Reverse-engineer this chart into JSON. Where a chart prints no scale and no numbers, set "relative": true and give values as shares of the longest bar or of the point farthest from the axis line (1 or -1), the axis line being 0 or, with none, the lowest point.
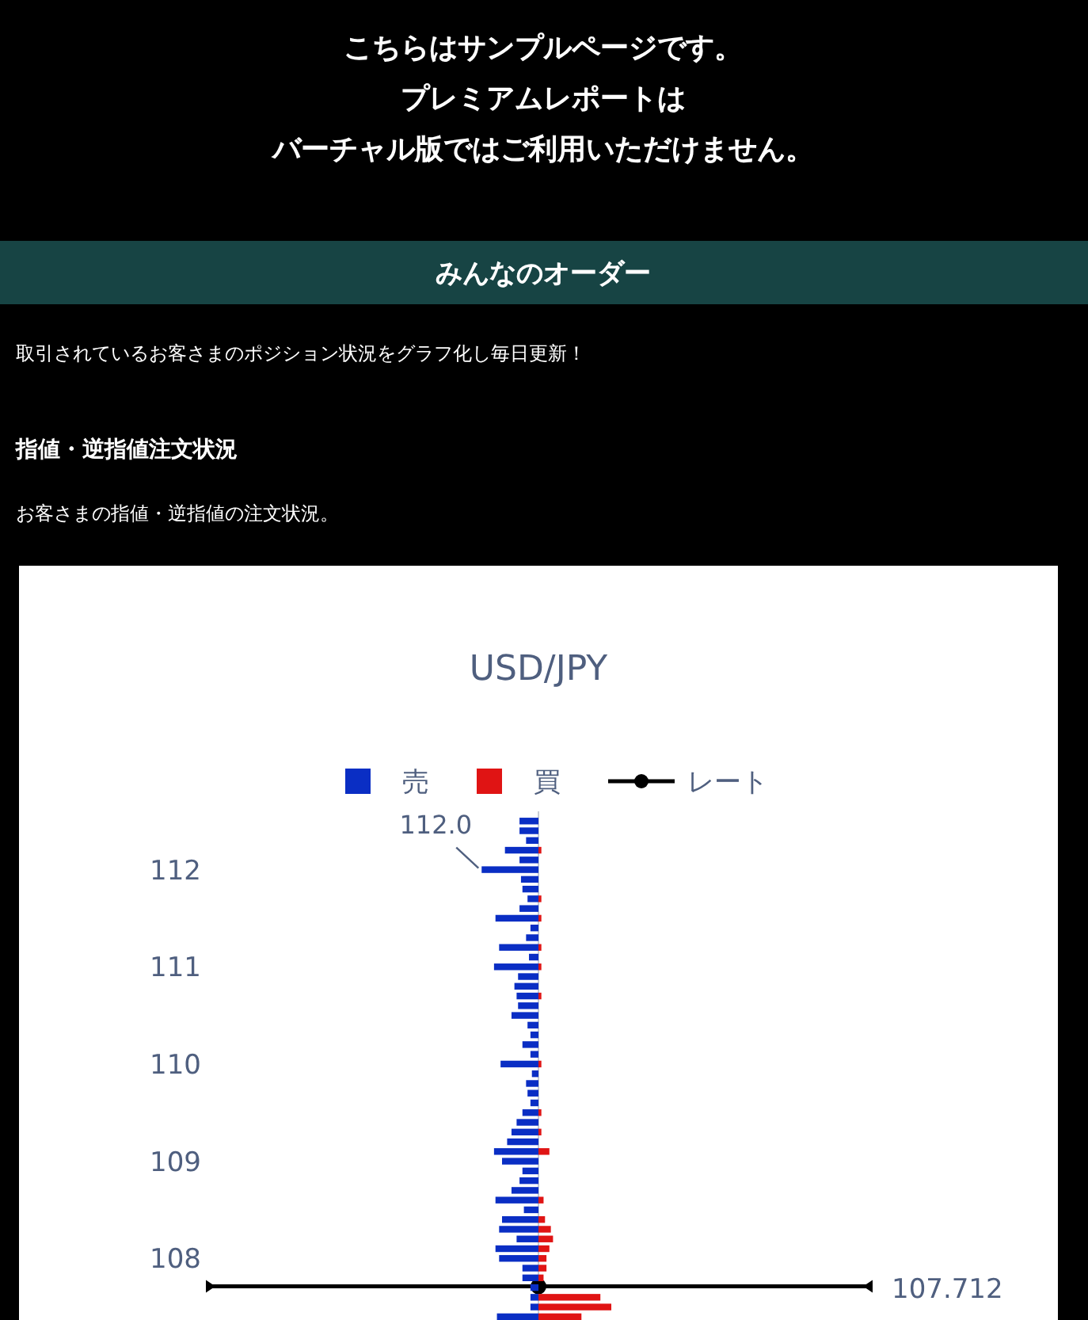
{
  "chart_data": {
    "type": "bar",
    "orientation": "horizontal",
    "relative": true,
    "title": "USD/JPY",
    "annotations": [
      "こちらはサンプルページです。",
      "プレミアムレポートは",
      "バーチャル版ではご利用いただけません。",
      "みんなのオーダー",
      "取引されているお客さまのポジション状況をグラフ化し毎日更新！",
      "指値・逆指値注文状況",
      "お客さまの指値・逆指値の注文状況。",
      "112.0"
    ],
    "x": [
      112.5,
      112.4,
      112.3,
      112.2,
      112.1,
      112.0,
      111.9,
      111.8,
      111.7,
      111.6,
      111.5,
      111.4,
      111.3,
      111.2,
      111.1,
      111.0,
      110.9,
      110.8,
      110.7,
      110.6,
      110.5,
      110.4,
      110.3,
      110.2,
      110.1,
      110.0,
      109.9,
      109.8,
      109.7,
      109.6,
      109.5,
      109.4,
      109.3,
      109.2,
      109.1,
      109.0,
      108.9,
      108.8,
      108.7,
      108.6,
      108.5,
      108.4,
      108.3,
      108.2,
      108.1,
      108.0,
      107.9,
      107.8,
      107.7,
      107.6,
      107.5,
      107.4
    ],
    "ylim": [
      107.35,
      112.6
    ],
    "yticks": [
      108,
      109,
      110,
      111,
      112
    ],
    "legend": "top",
    "marker": "circle",
    "ref_lines": [
      {
        "axis": "y",
        "value": 107.712,
        "label": "107.712",
        "color": "#000000"
      }
    ],
    "series": [
      {
        "name": "売",
        "color": "#0a2ec4",
        "values": [
          -0.26,
          -0.26,
          -0.17,
          -0.46,
          -0.26,
          -0.78,
          -0.24,
          -0.22,
          -0.15,
          -0.26,
          -0.59,
          -0.11,
          -0.17,
          -0.54,
          -0.13,
          -0.61,
          -0.28,
          -0.33,
          -0.3,
          -0.28,
          -0.37,
          -0.15,
          -0.11,
          -0.22,
          -0.11,
          -0.52,
          -0.09,
          -0.17,
          -0.15,
          -0.11,
          -0.22,
          -0.3,
          -0.37,
          -0.43,
          -0.61,
          -0.5,
          -0.22,
          -0.26,
          -0.37,
          -0.59,
          -0.2,
          -0.5,
          -0.54,
          -0.3,
          -0.59,
          -0.54,
          -0.22,
          -0.22,
          -0.11,
          -0.11,
          -0.11,
          -0.57
        ]
      },
      {
        "name": "買",
        "color": "#e01414",
        "values": [
          null,
          null,
          null,
          0.04,
          null,
          null,
          null,
          null,
          0.04,
          null,
          0.04,
          null,
          null,
          0.04,
          null,
          0.04,
          null,
          null,
          0.04,
          null,
          null,
          null,
          null,
          null,
          null,
          0.04,
          null,
          null,
          null,
          null,
          0.04,
          null,
          0.04,
          null,
          0.15,
          null,
          null,
          null,
          null,
          0.07,
          null,
          0.09,
          0.17,
          0.2,
          0.15,
          0.11,
          0.11,
          0.07,
          null,
          0.85,
          1,
          0.59
        ]
      },
      {
        "name": "レート",
        "type": "line",
        "color": "#000000",
        "x": [
          107.712
        ],
        "values": [
          0
        ]
      }
    ]
  }
}
